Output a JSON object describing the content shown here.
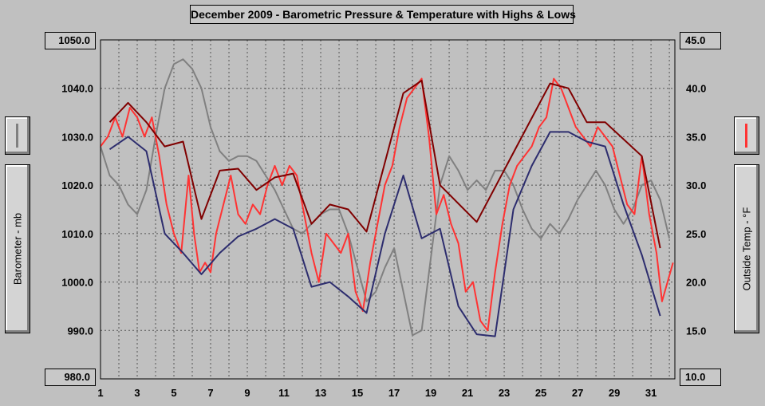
{
  "chart_data": {
    "type": "line",
    "title": "December 2009 - Barometric Pressure & Temperature with Highs & Lows",
    "left_axis": {
      "label": "Barometer - mb",
      "ylim": [
        980,
        1050
      ],
      "ticks": [
        "980.0",
        "990.0",
        "1000.0",
        "1010.0",
        "1020.0",
        "1030.0",
        "1040.0",
        "1050.0"
      ]
    },
    "right_axis": {
      "label": "Outside Temp - °F",
      "ylim": [
        10,
        45
      ],
      "ticks": [
        "10.0",
        "15.0",
        "20.0",
        "25.0",
        "30.0",
        "35.0",
        "40.0",
        "45.0"
      ]
    },
    "x_axis": {
      "xlim": [
        1,
        32.3
      ],
      "ticks": [
        "1",
        "3",
        "5",
        "7",
        "9",
        "11",
        "13",
        "15",
        "17",
        "19",
        "21",
        "23",
        "25",
        "27",
        "29",
        "31"
      ]
    },
    "grid": true,
    "series": [
      {
        "axis": "left",
        "color": "#808080",
        "points": [
          [
            1,
            1028
          ],
          [
            1.5,
            1022
          ],
          [
            2,
            1020
          ],
          [
            2.5,
            1016
          ],
          [
            3,
            1014
          ],
          [
            3.5,
            1019
          ],
          [
            4,
            1030
          ],
          [
            4.5,
            1040
          ],
          [
            5,
            1045
          ],
          [
            5.5,
            1046
          ],
          [
            6,
            1044
          ],
          [
            6.5,
            1040
          ],
          [
            7,
            1032
          ],
          [
            7.5,
            1027
          ],
          [
            8,
            1025
          ],
          [
            8.5,
            1026
          ],
          [
            9,
            1026
          ],
          [
            9.5,
            1025
          ],
          [
            10,
            1022
          ],
          [
            10.5,
            1019
          ],
          [
            11,
            1015
          ],
          [
            11.5,
            1011
          ],
          [
            12,
            1010
          ],
          [
            12.5,
            1012
          ],
          [
            13,
            1014
          ],
          [
            13.5,
            1015
          ],
          [
            14,
            1015
          ],
          [
            14.5,
            1010
          ],
          [
            15,
            1003
          ],
          [
            15.5,
            996
          ],
          [
            16,
            998
          ],
          [
            16.5,
            1003
          ],
          [
            17,
            1007
          ],
          [
            17.5,
            998
          ],
          [
            18,
            989
          ],
          [
            18.5,
            990
          ],
          [
            19,
            1005
          ],
          [
            19.5,
            1020
          ],
          [
            20,
            1026
          ],
          [
            20.5,
            1023
          ],
          [
            21,
            1019
          ],
          [
            21.5,
            1021
          ],
          [
            22,
            1019
          ],
          [
            22.5,
            1023
          ],
          [
            23,
            1023
          ],
          [
            23.5,
            1020
          ],
          [
            24,
            1015
          ],
          [
            24.5,
            1011
          ],
          [
            25,
            1009
          ],
          [
            25.5,
            1012
          ],
          [
            26,
            1010
          ],
          [
            26.5,
            1013
          ],
          [
            27,
            1017
          ],
          [
            27.5,
            1020
          ],
          [
            28,
            1023
          ],
          [
            28.5,
            1020
          ],
          [
            29,
            1015
          ],
          [
            29.5,
            1012
          ],
          [
            30,
            1015
          ],
          [
            30.5,
            1020
          ],
          [
            31,
            1021
          ],
          [
            31.5,
            1017
          ],
          [
            32,
            1009
          ]
        ]
      },
      {
        "axis": "right",
        "color": "#ff3333",
        "points": [
          [
            1,
            34
          ],
          [
            1.4,
            35
          ],
          [
            1.8,
            37
          ],
          [
            2.2,
            35
          ],
          [
            2.6,
            38
          ],
          [
            3,
            37
          ],
          [
            3.4,
            35
          ],
          [
            3.8,
            37
          ],
          [
            4.2,
            33
          ],
          [
            4.6,
            28
          ],
          [
            5,
            25
          ],
          [
            5.4,
            23
          ],
          [
            5.8,
            31
          ],
          [
            6.1,
            25
          ],
          [
            6.4,
            21
          ],
          [
            6.7,
            22
          ],
          [
            7,
            21
          ],
          [
            7.3,
            25
          ],
          [
            7.7,
            28
          ],
          [
            8.1,
            31
          ],
          [
            8.5,
            27
          ],
          [
            8.9,
            26
          ],
          [
            9.3,
            28
          ],
          [
            9.7,
            27
          ],
          [
            10.1,
            30
          ],
          [
            10.5,
            32
          ],
          [
            10.9,
            30
          ],
          [
            11.3,
            32
          ],
          [
            11.7,
            31
          ],
          [
            12.1,
            27
          ],
          [
            12.5,
            23
          ],
          [
            12.9,
            20
          ],
          [
            13.3,
            25
          ],
          [
            13.7,
            24
          ],
          [
            14.1,
            23
          ],
          [
            14.5,
            25
          ],
          [
            14.9,
            19
          ],
          [
            15.3,
            17
          ],
          [
            15.7,
            22
          ],
          [
            16.1,
            26
          ],
          [
            16.5,
            30
          ],
          [
            16.9,
            32
          ],
          [
            17.3,
            36
          ],
          [
            17.7,
            39
          ],
          [
            18.1,
            40
          ],
          [
            18.5,
            41
          ],
          [
            18.9,
            35
          ],
          [
            19.3,
            27
          ],
          [
            19.7,
            29
          ],
          [
            20.1,
            26
          ],
          [
            20.5,
            24
          ],
          [
            20.9,
            19
          ],
          [
            21.3,
            20
          ],
          [
            21.7,
            16
          ],
          [
            22.1,
            15
          ],
          [
            22.5,
            21
          ],
          [
            22.9,
            26
          ],
          [
            23.3,
            30
          ],
          [
            23.7,
            32
          ],
          [
            24.1,
            33
          ],
          [
            24.5,
            34
          ],
          [
            24.9,
            36
          ],
          [
            25.3,
            37
          ],
          [
            25.7,
            41
          ],
          [
            26.1,
            40
          ],
          [
            26.5,
            38
          ],
          [
            26.9,
            36
          ],
          [
            27.3,
            35
          ],
          [
            27.7,
            34
          ],
          [
            28.1,
            36
          ],
          [
            28.5,
            35
          ],
          [
            28.9,
            34
          ],
          [
            29.3,
            31
          ],
          [
            29.7,
            28
          ],
          [
            30.1,
            27
          ],
          [
            30.5,
            33
          ],
          [
            30.9,
            27
          ],
          [
            31.3,
            23
          ],
          [
            31.6,
            18
          ],
          [
            31.9,
            20
          ],
          [
            32.2,
            22
          ]
        ]
      },
      {
        "axis": "right",
        "color": "#800000",
        "points": [
          [
            1.5,
            36.5
          ],
          [
            2.5,
            38.5
          ],
          [
            3.5,
            36.5
          ],
          [
            4.5,
            34
          ],
          [
            5.5,
            34.5
          ],
          [
            6.5,
            26.5
          ],
          [
            7.5,
            31.5
          ],
          [
            8.5,
            31.7
          ],
          [
            9.5,
            29.5
          ],
          [
            10.5,
            30.8
          ],
          [
            11.5,
            31.2
          ],
          [
            12.5,
            26
          ],
          [
            13.5,
            28
          ],
          [
            14.5,
            27.5
          ],
          [
            15.5,
            25.2
          ],
          [
            17.5,
            39.5
          ],
          [
            18.5,
            40.8
          ],
          [
            19.5,
            30
          ],
          [
            21.5,
            26.2
          ],
          [
            25.5,
            40.5
          ],
          [
            26.5,
            40
          ],
          [
            27.5,
            36.5
          ],
          [
            28.5,
            36.5
          ],
          [
            30.5,
            33
          ],
          [
            31.5,
            23.5
          ]
        ]
      },
      {
        "axis": "right",
        "color": "#2d2d6e",
        "points": [
          [
            1.5,
            33.7
          ],
          [
            2.5,
            35
          ],
          [
            3.5,
            33.5
          ],
          [
            4.5,
            25
          ],
          [
            5.5,
            23
          ],
          [
            6.5,
            20.8
          ],
          [
            7.5,
            23
          ],
          [
            8.5,
            24.7
          ],
          [
            9.5,
            25.5
          ],
          [
            10.5,
            26.5
          ],
          [
            11.5,
            25.5
          ],
          [
            12.5,
            19.5
          ],
          [
            13.5,
            20
          ],
          [
            14.5,
            18.5
          ],
          [
            15.5,
            16.8
          ],
          [
            16.5,
            25
          ],
          [
            17.5,
            31
          ],
          [
            18.5,
            24.5
          ],
          [
            19.5,
            25.5
          ],
          [
            20.5,
            17.5
          ],
          [
            21.5,
            14.6
          ],
          [
            22.5,
            14.4
          ],
          [
            23.5,
            27.5
          ],
          [
            24.5,
            32
          ],
          [
            25.5,
            35.5
          ],
          [
            26.5,
            35.5
          ],
          [
            27.5,
            34.5
          ],
          [
            28.5,
            34
          ],
          [
            29.5,
            28
          ],
          [
            30.5,
            22.8
          ],
          [
            31.5,
            16.5
          ]
        ]
      }
    ],
    "legend": [
      {
        "name": "",
        "color": "#808080",
        "placement": "left"
      },
      {
        "name": "",
        "color": "#ff3333",
        "placement": "right"
      }
    ]
  }
}
